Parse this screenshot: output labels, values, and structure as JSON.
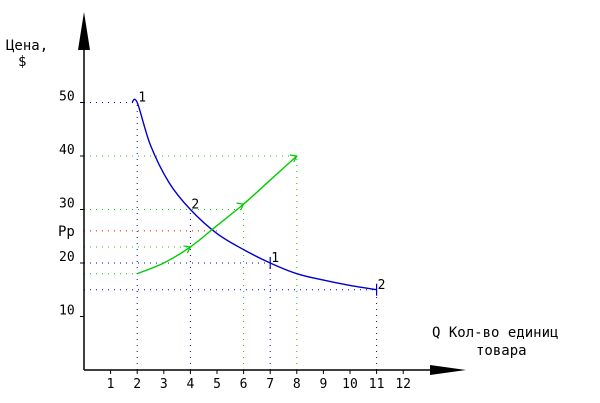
{
  "chart_data": {
    "type": "line",
    "ylabel_line1": "Цена,",
    "ylabel_line2": "$",
    "xlabel_line1": "Q Кол-во единиц",
    "xlabel_line2": "товара",
    "equilibrium_price_label": "Pр",
    "x_ticks": [
      1,
      2,
      3,
      4,
      5,
      6,
      7,
      8,
      9,
      10,
      11,
      12
    ],
    "y_ticks": [
      10,
      20,
      30,
      40,
      50
    ],
    "xlim": [
      0,
      12.6
    ],
    "ylim": [
      0,
      60
    ],
    "point_labels": [
      {
        "text": "1",
        "x": 2,
        "y": 50
      },
      {
        "text": "2",
        "x": 4,
        "y": 30
      },
      {
        "text": "1",
        "x": 7,
        "y": 20
      },
      {
        "text": "2",
        "x": 11,
        "y": 15
      }
    ],
    "series": [
      {
        "role": "demand",
        "color": "#0000cc",
        "x": [
          1.8,
          2,
          2.5,
          3.2,
          4,
          5,
          6,
          7,
          8,
          9,
          10,
          11
        ],
        "y": [
          50,
          50,
          42,
          35,
          30,
          25.5,
          22.5,
          20,
          18,
          16.8,
          15.8,
          15
        ]
      },
      {
        "role": "supply",
        "color": "#00cc00",
        "x": [
          2,
          3,
          4,
          5,
          6,
          7,
          8
        ],
        "y": [
          18,
          20,
          23,
          27,
          31,
          35.5,
          40
        ]
      }
    ],
    "guides": [
      {
        "color": "#0000cc",
        "x": [
          0,
          2
        ],
        "y": [
          50,
          50
        ]
      },
      {
        "color": "#0000cc",
        "x": [
          2,
          2
        ],
        "y": [
          0,
          50
        ]
      },
      {
        "color": "#0000cc",
        "x": [
          0,
          4
        ],
        "y": [
          30,
          30
        ]
      },
      {
        "color": "#0000cc",
        "x": [
          4,
          4
        ],
        "y": [
          0,
          30
        ]
      },
      {
        "color": "#0000cc",
        "x": [
          0,
          7
        ],
        "y": [
          20,
          20
        ]
      },
      {
        "color": "#0000cc",
        "x": [
          7,
          7
        ],
        "y": [
          0,
          20
        ]
      },
      {
        "color": "#0000cc",
        "x": [
          0,
          11
        ],
        "y": [
          15,
          15
        ]
      },
      {
        "color": "#0000cc",
        "x": [
          11,
          11
        ],
        "y": [
          0,
          15
        ]
      },
      {
        "color": "#00cc00",
        "x": [
          0,
          8
        ],
        "y": [
          40,
          40
        ]
      },
      {
        "color": "#00cc00",
        "x": [
          8,
          8
        ],
        "y": [
          0,
          40
        ]
      },
      {
        "color": "#00cc00",
        "x": [
          0,
          6
        ],
        "y": [
          30,
          30
        ]
      },
      {
        "color": "#00cc00",
        "x": [
          6,
          6
        ],
        "y": [
          0,
          30
        ]
      },
      {
        "color": "#00cc00",
        "x": [
          0,
          4
        ],
        "y": [
          23,
          23
        ]
      },
      {
        "color": "#00cc00",
        "x": [
          0,
          2
        ],
        "y": [
          18,
          18
        ]
      },
      {
        "color": "#ff0000",
        "x": [
          0,
          5
        ],
        "y": [
          26,
          26
        ]
      }
    ],
    "grid": false
  }
}
